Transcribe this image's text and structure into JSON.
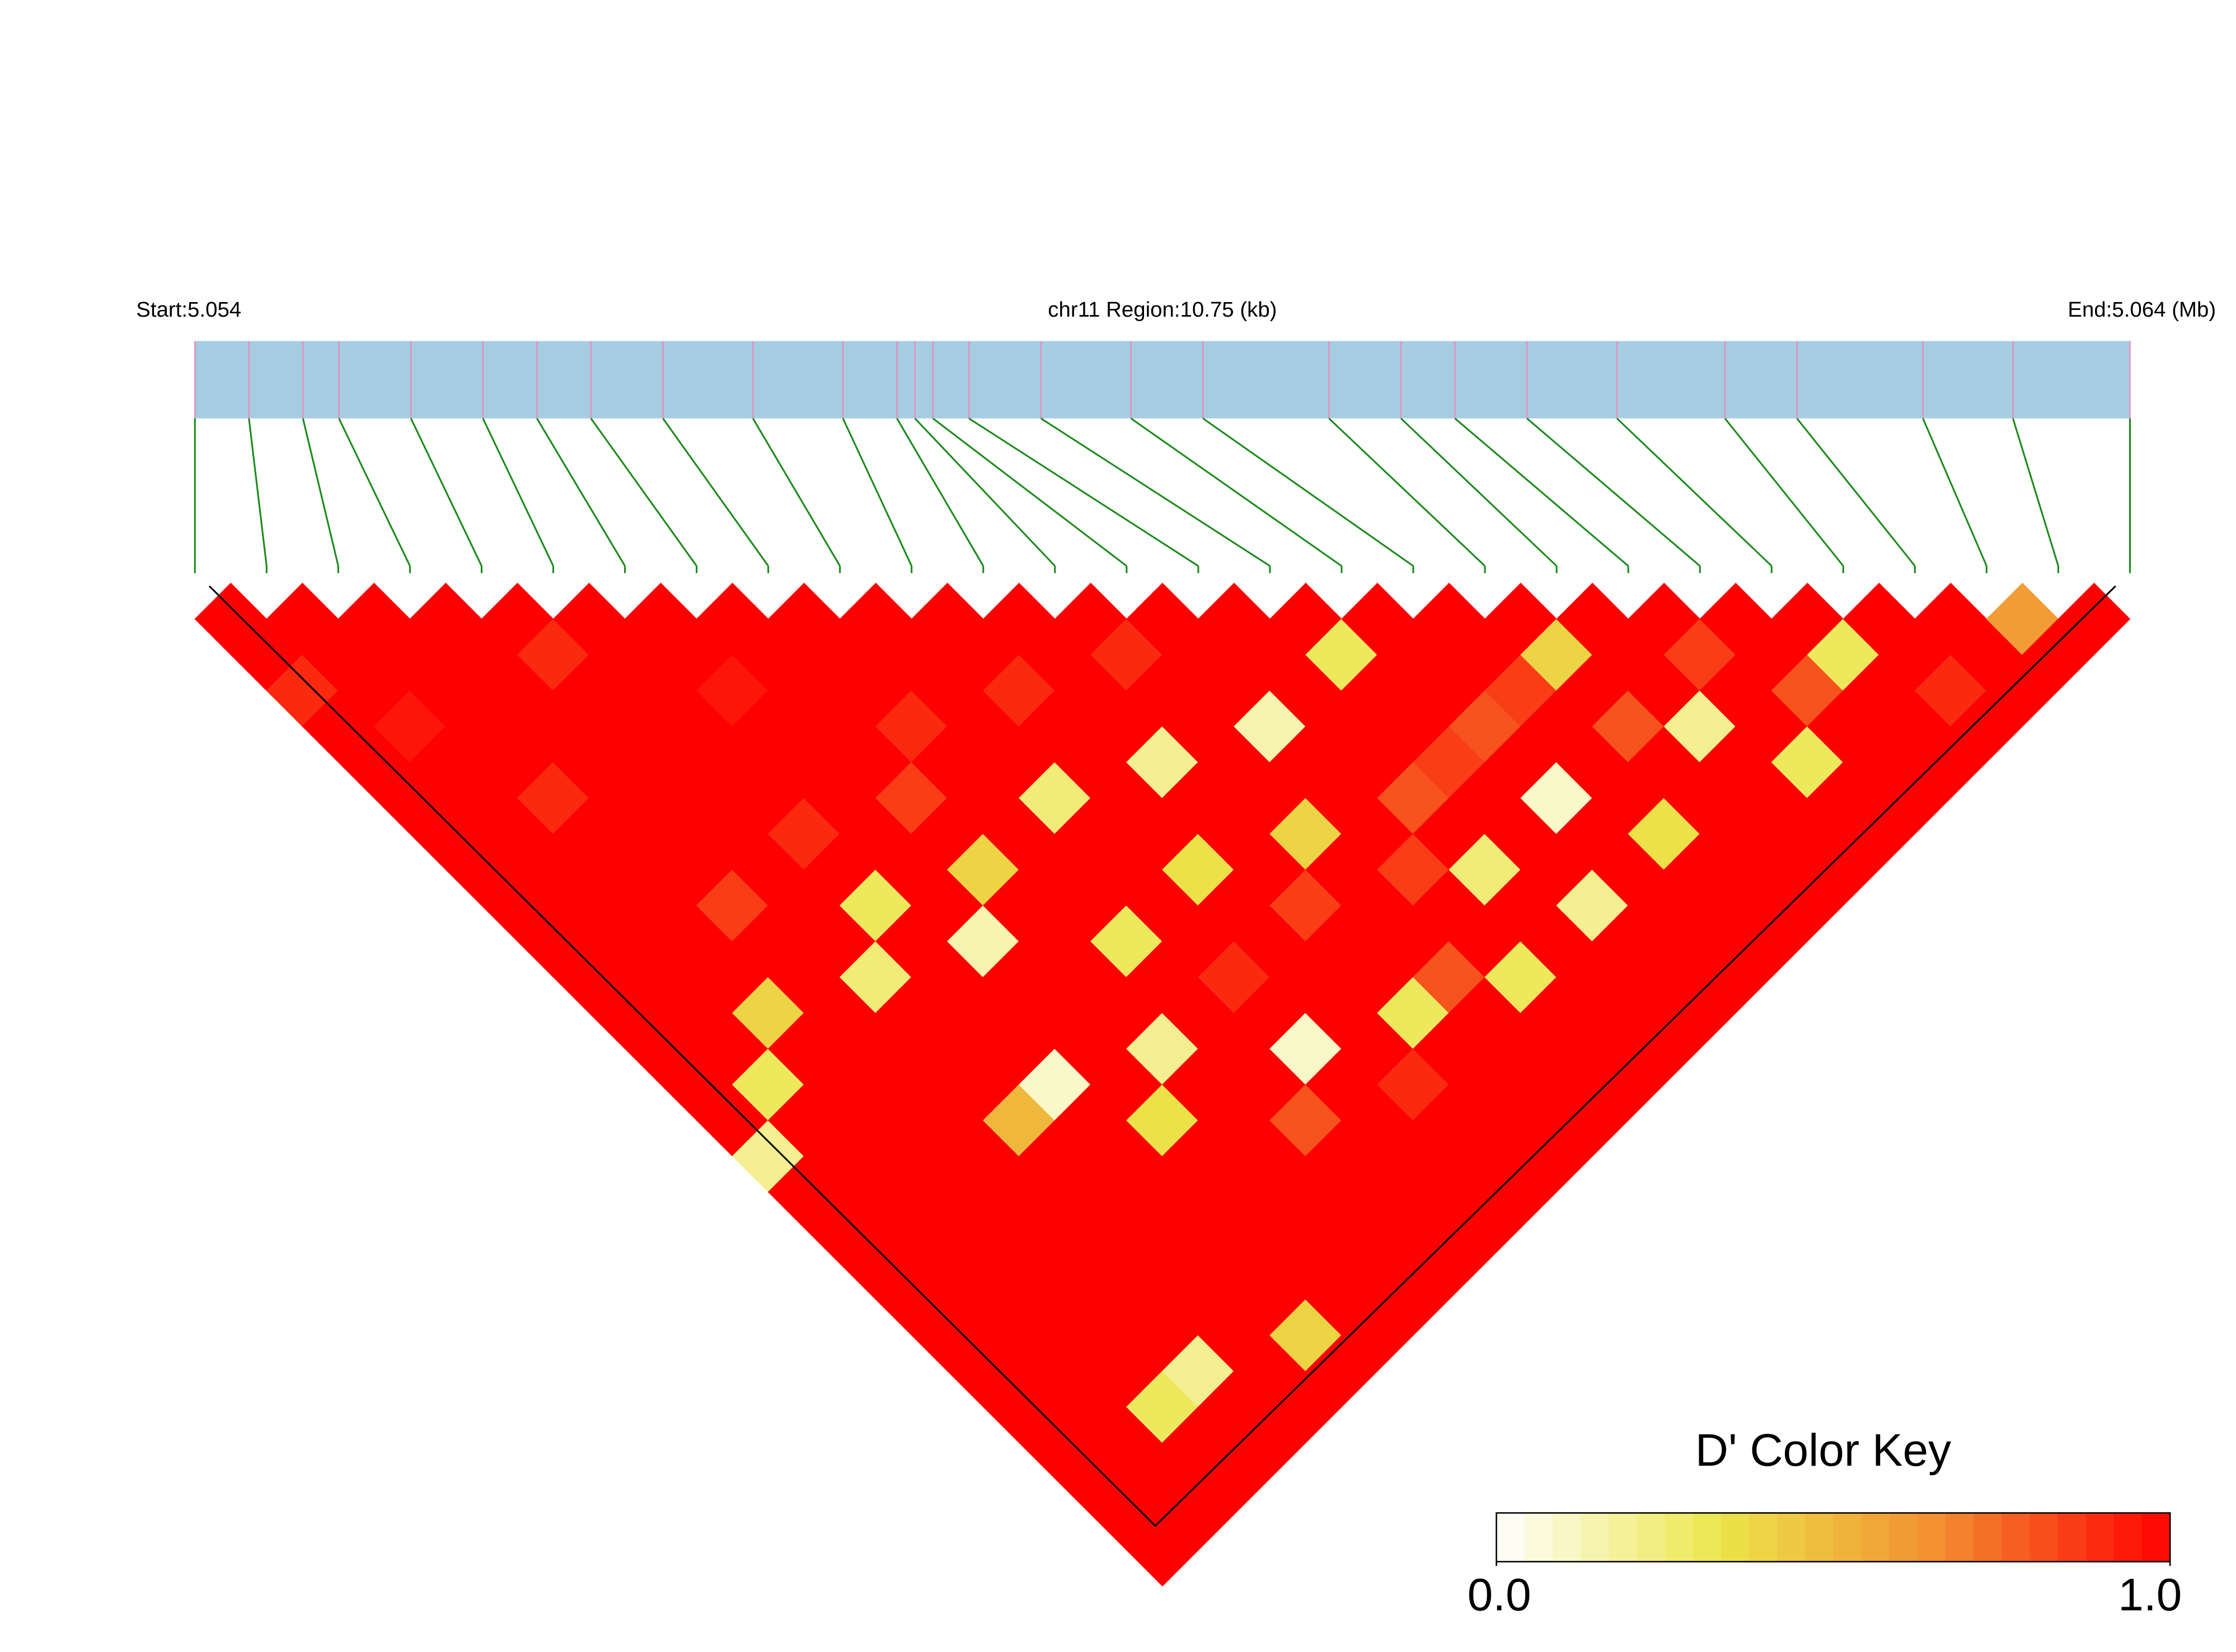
{
  "chart_data": {
    "type": "ld-heatmap",
    "start_label": "Start:5.054",
    "region_label": "chr11 Region:10.75 (kb)",
    "end_label": "End:5.064 (Mb)",
    "key_title": "D' Color Key",
    "xlim": [
      0,
      10.75
    ],
    "positions": [
      0,
      0.3,
      0.6,
      0.8,
      1.2,
      1.6,
      1.9,
      2.2,
      2.6,
      3.1,
      3.6,
      3.9,
      4.0,
      4.1,
      4.3,
      4.7,
      5.2,
      5.6,
      6.3,
      6.7,
      7.0,
      7.4,
      7.9,
      8.5,
      8.9,
      9.6,
      10.1,
      10.75
    ],
    "dprime": [
      [
        1,
        1,
        0.9,
        1,
        1,
        1,
        1,
        1,
        1,
        1,
        1,
        1,
        1,
        1,
        1,
        0.2,
        1,
        1,
        1,
        1,
        1,
        1,
        1,
        1,
        1,
        1,
        1
      ],
      [
        1,
        1,
        1,
        0.95,
        1,
        1,
        1,
        1,
        1,
        1,
        1,
        1,
        1,
        0.3,
        1,
        1,
        1,
        1,
        1,
        1,
        1,
        1,
        1,
        1,
        1,
        1
      ],
      [
        1,
        1,
        1,
        1,
        1,
        0.9,
        1,
        1,
        1,
        1,
        1,
        0.4,
        1,
        1,
        1,
        1,
        1,
        1,
        1,
        1,
        1,
        1,
        0.3,
        1,
        1
      ],
      [
        1,
        1,
        1,
        1,
        1,
        1,
        1,
        1,
        0.85,
        1,
        1,
        1,
        1,
        1,
        1,
        1,
        1,
        1,
        1,
        1,
        1,
        0.2,
        1,
        1
      ],
      [
        1,
        0.9,
        1,
        1,
        1,
        1,
        1,
        1,
        1,
        1,
        0.25,
        1,
        1,
        1,
        0.5,
        1,
        1,
        1,
        1,
        1,
        1,
        1,
        1
      ],
      [
        1,
        1,
        1,
        1,
        1,
        1,
        0.9,
        1,
        0.3,
        1,
        1,
        1,
        1,
        0.1,
        1,
        1,
        1,
        1,
        1,
        1,
        0.4,
        1
      ],
      [
        1,
        1,
        0.95,
        1,
        1,
        1,
        1,
        1,
        1,
        0.15,
        1,
        1,
        1,
        1,
        0.35,
        1,
        1,
        1,
        1,
        1,
        1
      ],
      [
        1,
        1,
        1,
        1,
        1,
        0.85,
        1,
        0.4,
        1,
        1,
        1,
        1,
        0.2,
        1,
        1,
        1,
        1,
        1,
        1,
        1
      ],
      [
        1,
        1,
        1,
        0.9,
        1,
        1,
        1,
        1,
        1,
        0.3,
        1,
        1,
        1,
        1,
        0.8,
        1,
        1,
        1,
        1
      ],
      [
        1,
        1,
        1,
        1,
        1,
        0.25,
        1,
        1,
        1,
        1,
        0.9,
        1,
        0.1,
        1,
        1,
        1,
        1,
        1
      ],
      [
        1,
        1,
        0.9,
        1,
        1,
        1,
        1,
        0.35,
        1,
        1,
        1,
        1,
        1,
        0.9,
        1,
        1,
        1
      ],
      [
        1,
        1,
        1,
        1,
        0.2,
        1,
        1,
        1,
        0.85,
        1,
        1,
        0.3,
        1,
        1,
        1,
        1
      ],
      [
        1,
        0.9,
        1,
        1,
        1,
        1,
        0.4,
        1,
        1,
        1,
        0.8,
        1,
        1,
        1,
        1
      ],
      [
        1,
        1,
        1,
        0.15,
        1,
        1,
        1,
        0.85,
        1,
        1,
        0.3,
        1,
        1,
        1
      ],
      [
        1,
        1,
        1,
        1,
        1,
        0.8,
        1,
        0.25,
        1,
        1,
        1,
        1,
        1
      ],
      [
        1,
        0.3,
        1,
        1,
        0.85,
        1,
        1,
        1,
        0.2,
        1,
        1,
        1
      ],
      [
        1,
        1,
        1,
        0.8,
        1,
        0.1,
        1,
        1,
        1,
        1,
        1
      ],
      [
        1,
        1,
        0.85,
        1,
        1,
        1,
        0.35,
        1,
        1,
        1
      ],
      [
        1,
        0.4,
        1,
        0.8,
        1,
        1,
        1,
        1,
        1
      ],
      [
        1,
        1,
        1,
        0.2,
        1,
        1,
        1,
        1
      ],
      [
        1,
        0.85,
        1,
        1,
        0.3,
        1,
        1
      ],
      [
        1,
        1,
        0.8,
        1,
        1,
        1
      ],
      [
        1,
        0.3,
        1,
        1,
        1
      ],
      [
        1,
        1,
        0.9,
        1
      ],
      [
        1,
        1,
        1
      ],
      [
        0.6,
        1
      ],
      [
        1
      ]
    ],
    "color_scale": [
      "#ffffff",
      "#ece64a",
      "#f28a30",
      "#ff0000"
    ],
    "key_ticks": [
      {
        "value": 0,
        "label": "0.0"
      },
      {
        "value": 1,
        "label": "1.0"
      }
    ]
  }
}
